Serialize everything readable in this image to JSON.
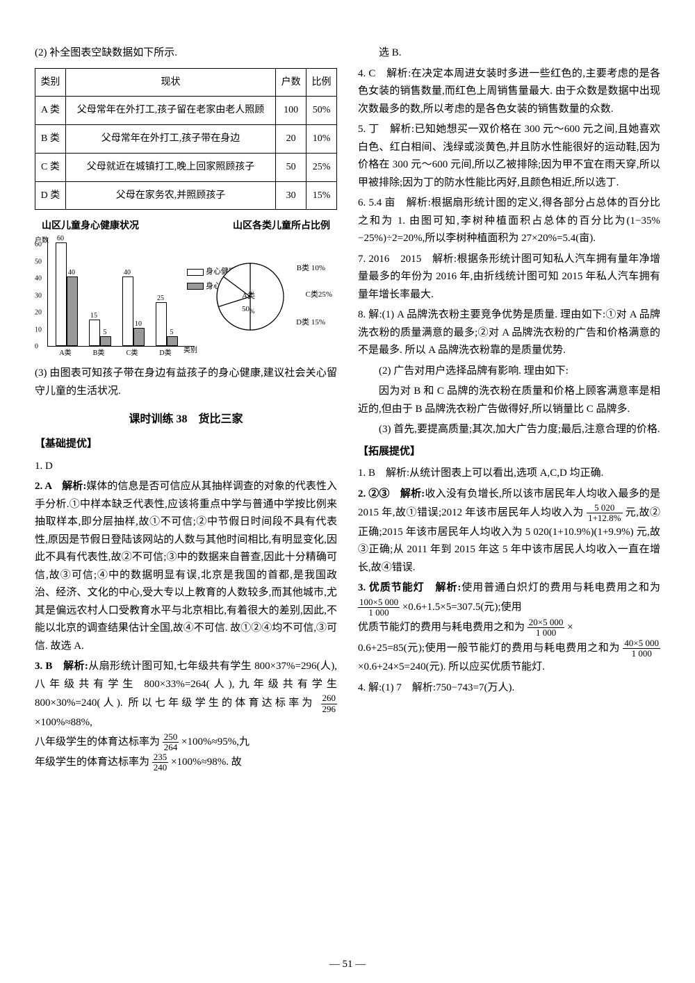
{
  "left": {
    "intro2": "(2) 补全图表空缺数据如下所示.",
    "table": {
      "headers": [
        "类别",
        "现状",
        "户数",
        "比例"
      ],
      "rows": [
        [
          "A 类",
          "父母常年在外打工,孩子留在老家由老人照顾",
          "100",
          "50%"
        ],
        [
          "B 类",
          "父母常年在外打工,孩子带在身边",
          "20",
          "10%"
        ],
        [
          "C 类",
          "父母就近在城镇打工,晚上回家照顾孩子",
          "50",
          "25%"
        ],
        [
          "D 类",
          "父母在家务农,并照顾孩子",
          "30",
          "15%"
        ]
      ]
    },
    "chartTitles": {
      "left": "山区儿童身心健康状况",
      "right": "山区各类儿童所占比例"
    },
    "bar": {
      "ylabel": "户数",
      "xlabel": "类别",
      "ylim": [
        0,
        60
      ],
      "ytick_step": 10,
      "categories": [
        "A类",
        "B类",
        "C类",
        "D类"
      ],
      "series": [
        {
          "label": "身心健康",
          "fill": "#ffffff",
          "values": [
            60,
            15,
            40,
            25
          ]
        },
        {
          "label": "身心一般",
          "fill": "#999999",
          "values": [
            40,
            5,
            10,
            5
          ]
        }
      ],
      "bar_color_border": "#000000",
      "value_labels": [
        [
          "60",
          "15",
          "40",
          "25"
        ],
        [
          "40",
          "5",
          "10",
          "5"
        ]
      ]
    },
    "pie": {
      "slices": [
        {
          "label": "A类 50%",
          "value": 50
        },
        {
          "label": "B类 10%",
          "value": 10
        },
        {
          "label": "C类25%",
          "value": 25
        },
        {
          "label": "D类 15%",
          "value": 15
        }
      ],
      "center_label": "50%"
    },
    "line3": "(3) 由图表可知孩子带在身边有益孩子的身心健康,建议社会关心留守儿童的生活状况.",
    "lesson_title": "课时训练 38　货比三家",
    "basic_head": "【基础提优】",
    "q1": "1. D",
    "q2_lead": "2. A　解析:",
    "q2_body": "媒体的信息是否可信应从其抽样调查的对象的代表性入手分析.①中样本缺乏代表性,应该将重点中学与普通中学按比例来抽取样本,即分层抽样,故①不可信;②中节假日时间段不具有代表性,原因是节假日登陆该网站的人数与其他时间相比,有明显变化,因此不具有代表性,故②不可信;③中的数据来自普查,因此十分精确可信,故③可信;④中的数据明显有误,北京是我国的首都,是我国政治、经济、文化的中心,受大专以上教育的人数较多,而其他城市,尤其是偏远农村人口受教育水平与北京相比,有着很大的差别,因此,不能以北京的调查结果估计全国,故④不可信. 故①②④均不可信,③可信. 故选 A.",
    "q3_lead": "3. B　解析:",
    "q3_body_a": "从扇形统计图可知,七年级共有学生 800×37%=296(人),八年级共有学生 800×33%=264(人),九年级共有学生 800×30%=240(人). 所以七年级学生的体育达标率为",
    "q3_frac1_t": "260",
    "q3_frac1_b": "296",
    "q3_mid1": "×100%≈88%,",
    "q3_body_b": "八年级学生的体育达标率为",
    "q3_frac2_t": "250",
    "q3_frac2_b": "264",
    "q3_mid2": "×100%≈95%,九",
    "q3_body_c": "年级学生的体育达标率为",
    "q3_frac3_t": "235",
    "q3_frac3_b": "240",
    "q3_mid3": "×100%≈98%. 故"
  },
  "right": {
    "selB": "选 B.",
    "q4": "4. C　解析:在决定本周进女装时多进一些红色的,主要考虑的是各色女装的销售数量,而红色上周销售量最大. 由于众数是数据中出现次数最多的数,所以考虑的是各色女装的销售数量的众数.",
    "q5": "5. 丁　解析:已知她想买一双价格在 300 元～600 元之间,且她喜欢白色、红白相间、浅绿或淡黄色,并且防水性能很好的运动鞋,因为价格在 300 元～600 元间,所以乙被排除;因为甲不宜在雨天穿,所以甲被排除;因为丁的防水性能比丙好,且颜色相近,所以选丁.",
    "q6": "6. 5.4 亩　解析:根据扇形统计图的定义,得各部分占总体的百分比之和为 1. 由图可知,李树种植面积占总体的百分比为(1−35%−25%)÷2=20%,所以李树种植面积为 27×20%=5.4(亩).",
    "q7": "7. 2016　2015　解析:根据条形统计图可知私人汽车拥有量年净增量最多的年份为 2016 年,由折线统计图可知 2015 年私人汽车拥有量年增长率最大.",
    "q8a": "8. 解:(1) A 品牌洗衣粉主要竞争优势是质量. 理由如下:①对 A 品牌洗衣粉的质量满意的最多;②对 A 品牌洗衣粉的广告和价格满意的不是最多. 所以 A 品牌洗衣粉靠的是质量优势.",
    "q8b": "(2) 广告对用户选择品牌有影响. 理由如下:",
    "q8c": "因为对 B 和 C 品牌的洗衣粉在质量和价格上顾客满意率是相近的,但由于 B 品牌洗衣粉广告做得好,所以销量比 C 品牌多.",
    "q8d": "(3) 首先,要提高质量;其次,加大广告力度;最后,注意合理的价格.",
    "ext_head": "【拓展提优】",
    "e1": "1. B　解析:从统计图表上可以看出,选项 A,C,D 均正确.",
    "e2_lead": "2. ②③　解析:",
    "e2_a": "收入没有负增长,所以该市居民年人均收入最多的是 2015 年,故①错误;2012 年该市居民年人均收入为",
    "e2_frac_t": "5 020",
    "e2_frac_b": "1+12.8%",
    "e2_b": " 元,故②正确;2015 年该市居民年人均收入为 5 020(1+10.9%)(1+9.9%) 元,故③正确;从 2011 年到 2015 年这 5 年中该市居民人均收入一直在增长,故④错误.",
    "e3_lead": "3. 优质节能灯　解析:",
    "e3_a": "使用普通白炽灯的费用与耗电费用之和为",
    "e3_f1_t": "100×5 000",
    "e3_f1_b": "1 000",
    "e3_b": "×0.6+1.5×5=307.5(元);使用",
    "e3_c": "优质节能灯的费用与耗电费用之和为",
    "e3_f2_t": "20×5 000",
    "e3_f2_b": "1 000",
    "e3_d": "×",
    "e3_e": "0.6+25=85(元);使用一般节能灯的费用与耗电费用之和为",
    "e3_f3_t": "40×5 000",
    "e3_f3_b": "1 000",
    "e3_f": "×0.6+24×5=240(元). 所以应买优质节能灯.",
    "e4": "4. 解:(1) 7　解析:750−743=7(万人)."
  },
  "page_number": "— 51 —"
}
